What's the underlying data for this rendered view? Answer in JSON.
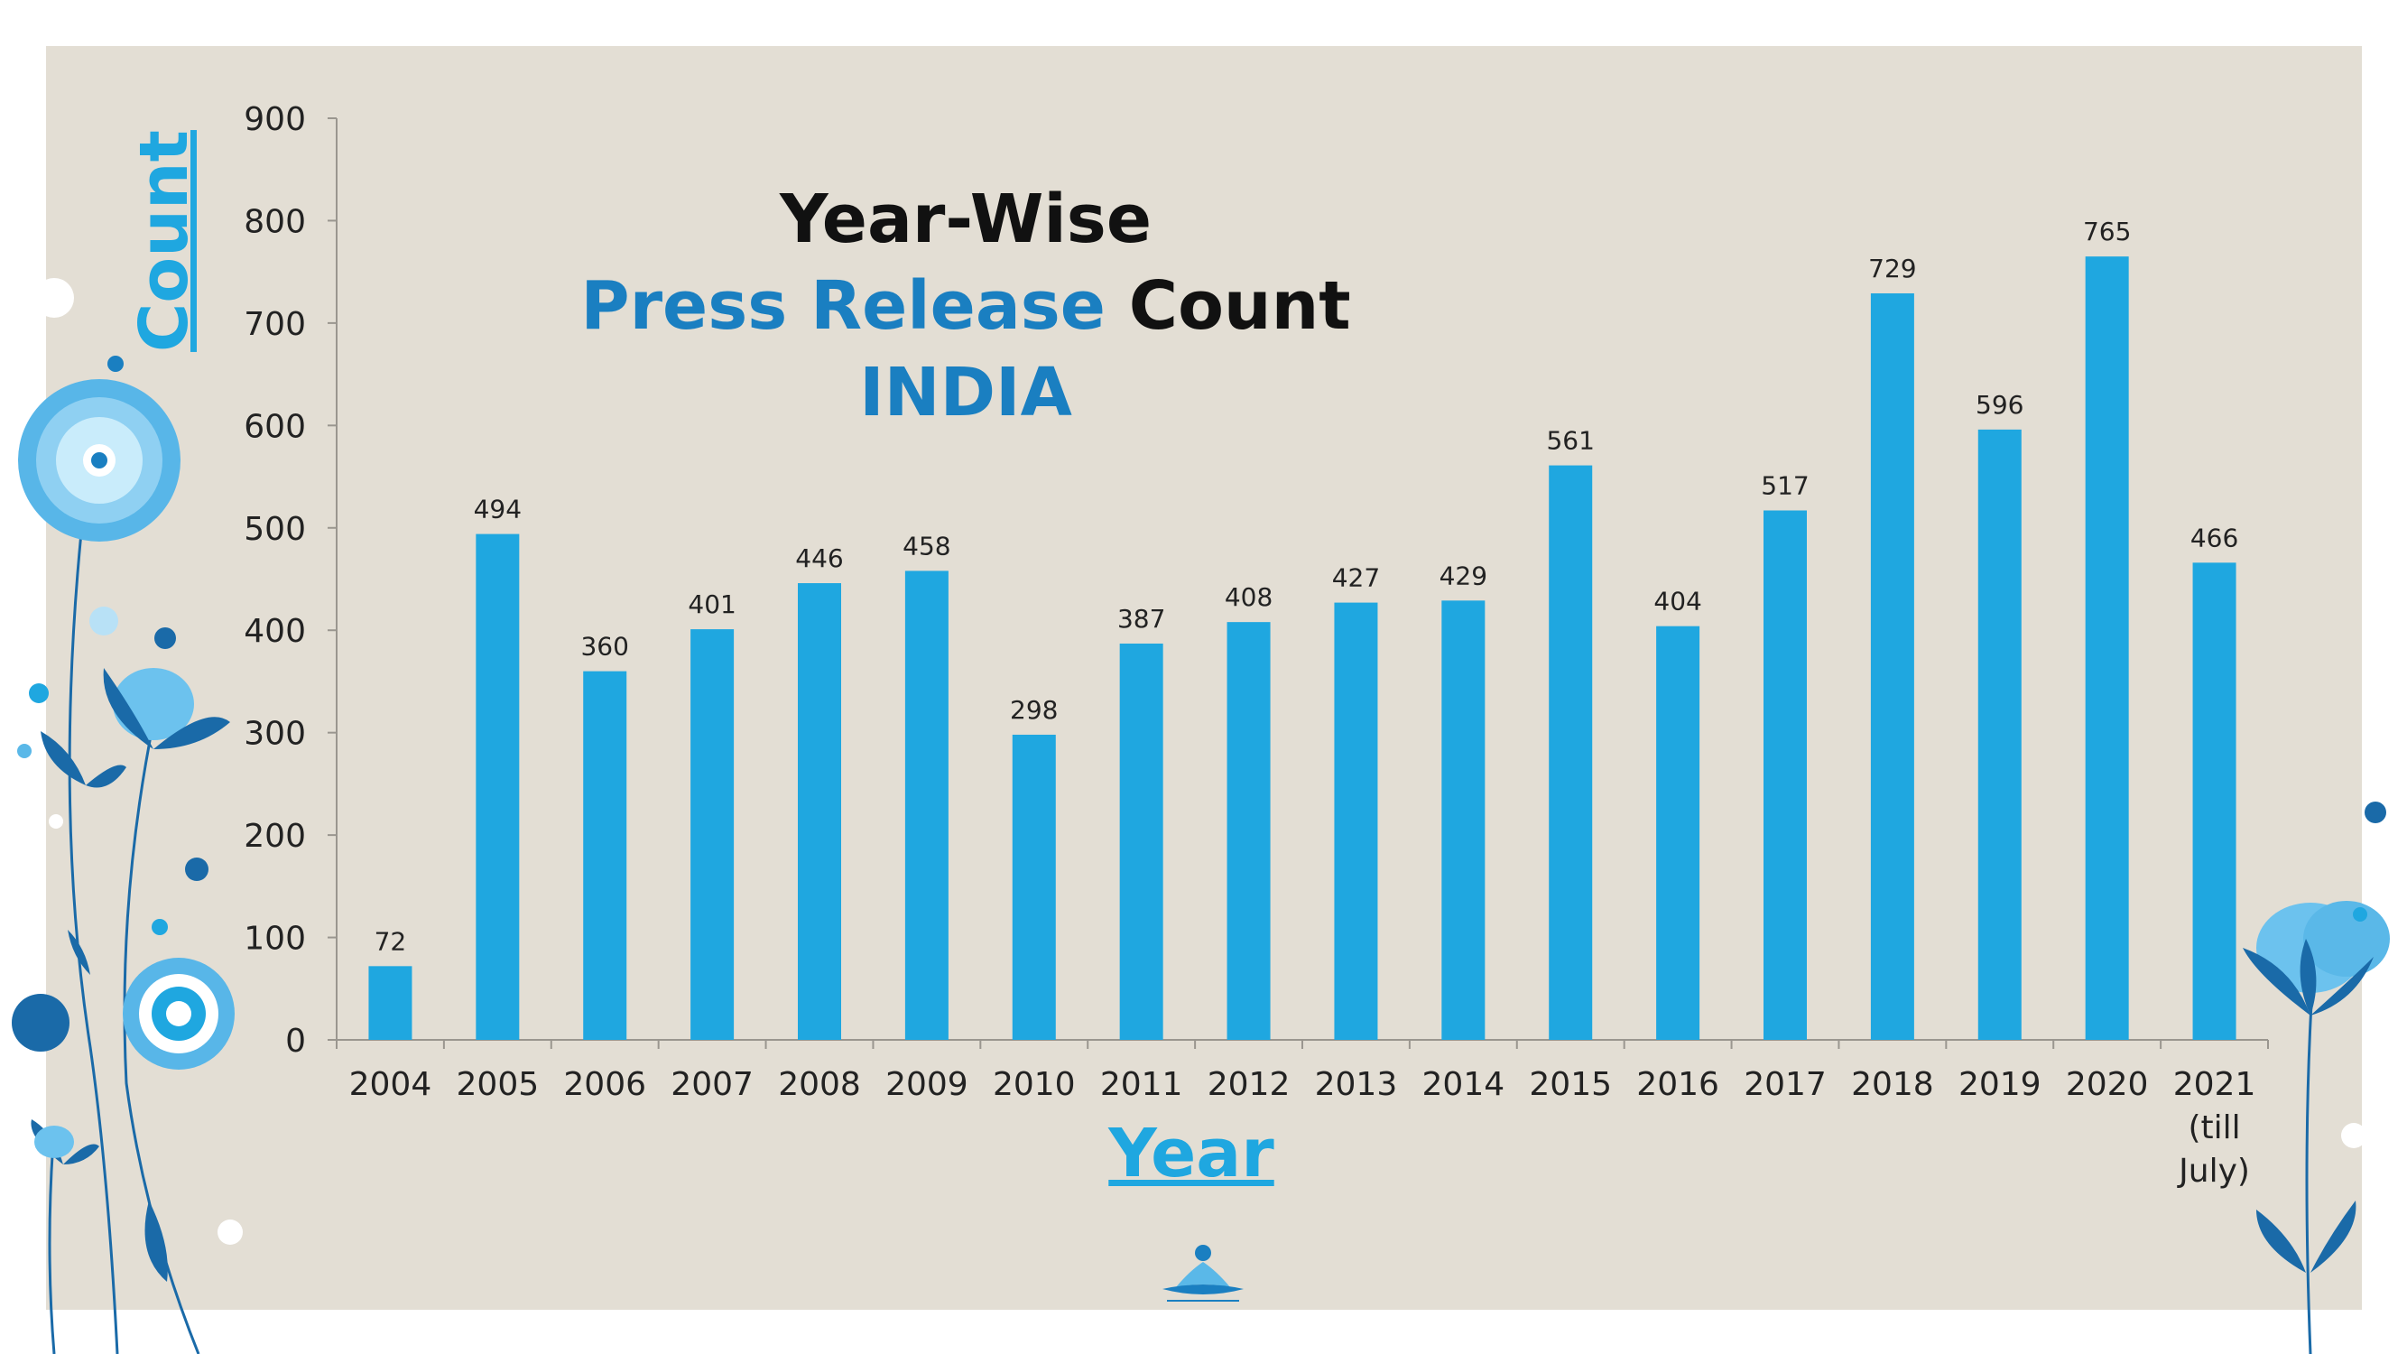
{
  "colors": {
    "bar": "#1fa7e0",
    "accent": "#1a7fc1",
    "title_dark": "#111111",
    "axis_label": "#1fa7e0",
    "panel": "#e3ded4"
  },
  "title": {
    "line1": "Year-Wise",
    "line2_accent": "Press Release",
    "line2_dark": " Count",
    "line3": "INDIA"
  },
  "chart_data": {
    "type": "bar",
    "categories": [
      "2004",
      "2005",
      "2006",
      "2007",
      "2008",
      "2009",
      "2010",
      "2011",
      "2012",
      "2013",
      "2014",
      "2015",
      "2016",
      "2017",
      "2018",
      "2019",
      "2020",
      "2021 (till July)"
    ],
    "values": [
      72,
      494,
      360,
      401,
      446,
      458,
      298,
      387,
      408,
      427,
      429,
      561,
      404,
      517,
      729,
      596,
      765,
      466
    ],
    "title": "Year-Wise Press Release Count INDIA",
    "xlabel": "Year",
    "ylabel": "Count",
    "ylim": [
      0,
      900
    ],
    "yticks": [
      0,
      100,
      200,
      300,
      400,
      500,
      600,
      700,
      800,
      900
    ],
    "grid": false,
    "legend": "none"
  }
}
